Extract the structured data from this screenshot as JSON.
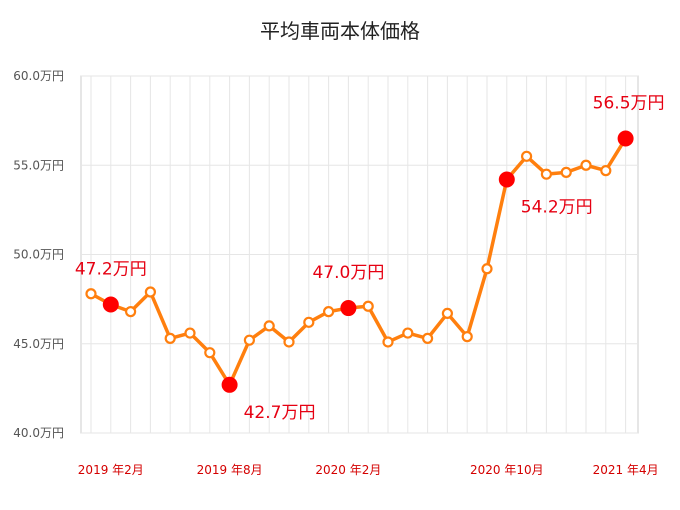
{
  "chart_data": {
    "type": "line",
    "title": "平均車両本体価格",
    "xlabel": "",
    "ylabel": "",
    "ylim": [
      40.0,
      60.0
    ],
    "y_ticks": [
      "40.0万円",
      "45.0万円",
      "50.0万円",
      "55.0万円",
      "60.0万円"
    ],
    "x_tick_labels": [
      {
        "index": 1,
        "label": "2019 年2月"
      },
      {
        "index": 7,
        "label": "2019 年8月"
      },
      {
        "index": 13,
        "label": "2020 年2月"
      },
      {
        "index": 21,
        "label": "2020 年10月"
      },
      {
        "index": 27,
        "label": "2021 年4月"
      }
    ],
    "series": [
      {
        "values": [
          47.8,
          47.2,
          46.8,
          47.9,
          45.3,
          45.6,
          44.5,
          42.7,
          45.2,
          46.0,
          45.1,
          46.2,
          46.8,
          47.0,
          47.1,
          45.1,
          45.6,
          45.3,
          46.7,
          45.4,
          49.2,
          54.2,
          55.5,
          54.5,
          54.6,
          55.0,
          54.7,
          56.5
        ],
        "color": "#ff7f0e"
      }
    ],
    "highlights": [
      {
        "index": 1,
        "label": "47.2万円",
        "pos": "above"
      },
      {
        "index": 7,
        "label": "42.7万円",
        "pos": "below-right"
      },
      {
        "index": 13,
        "label": "47.0万円",
        "pos": "above"
      },
      {
        "index": 21,
        "label": "54.2万円",
        "pos": "below-right"
      },
      {
        "index": 27,
        "label": "56.5万円",
        "pos": "above"
      }
    ],
    "grid": true,
    "highlight_color": "#ff0000",
    "label_color": "#e60012"
  }
}
